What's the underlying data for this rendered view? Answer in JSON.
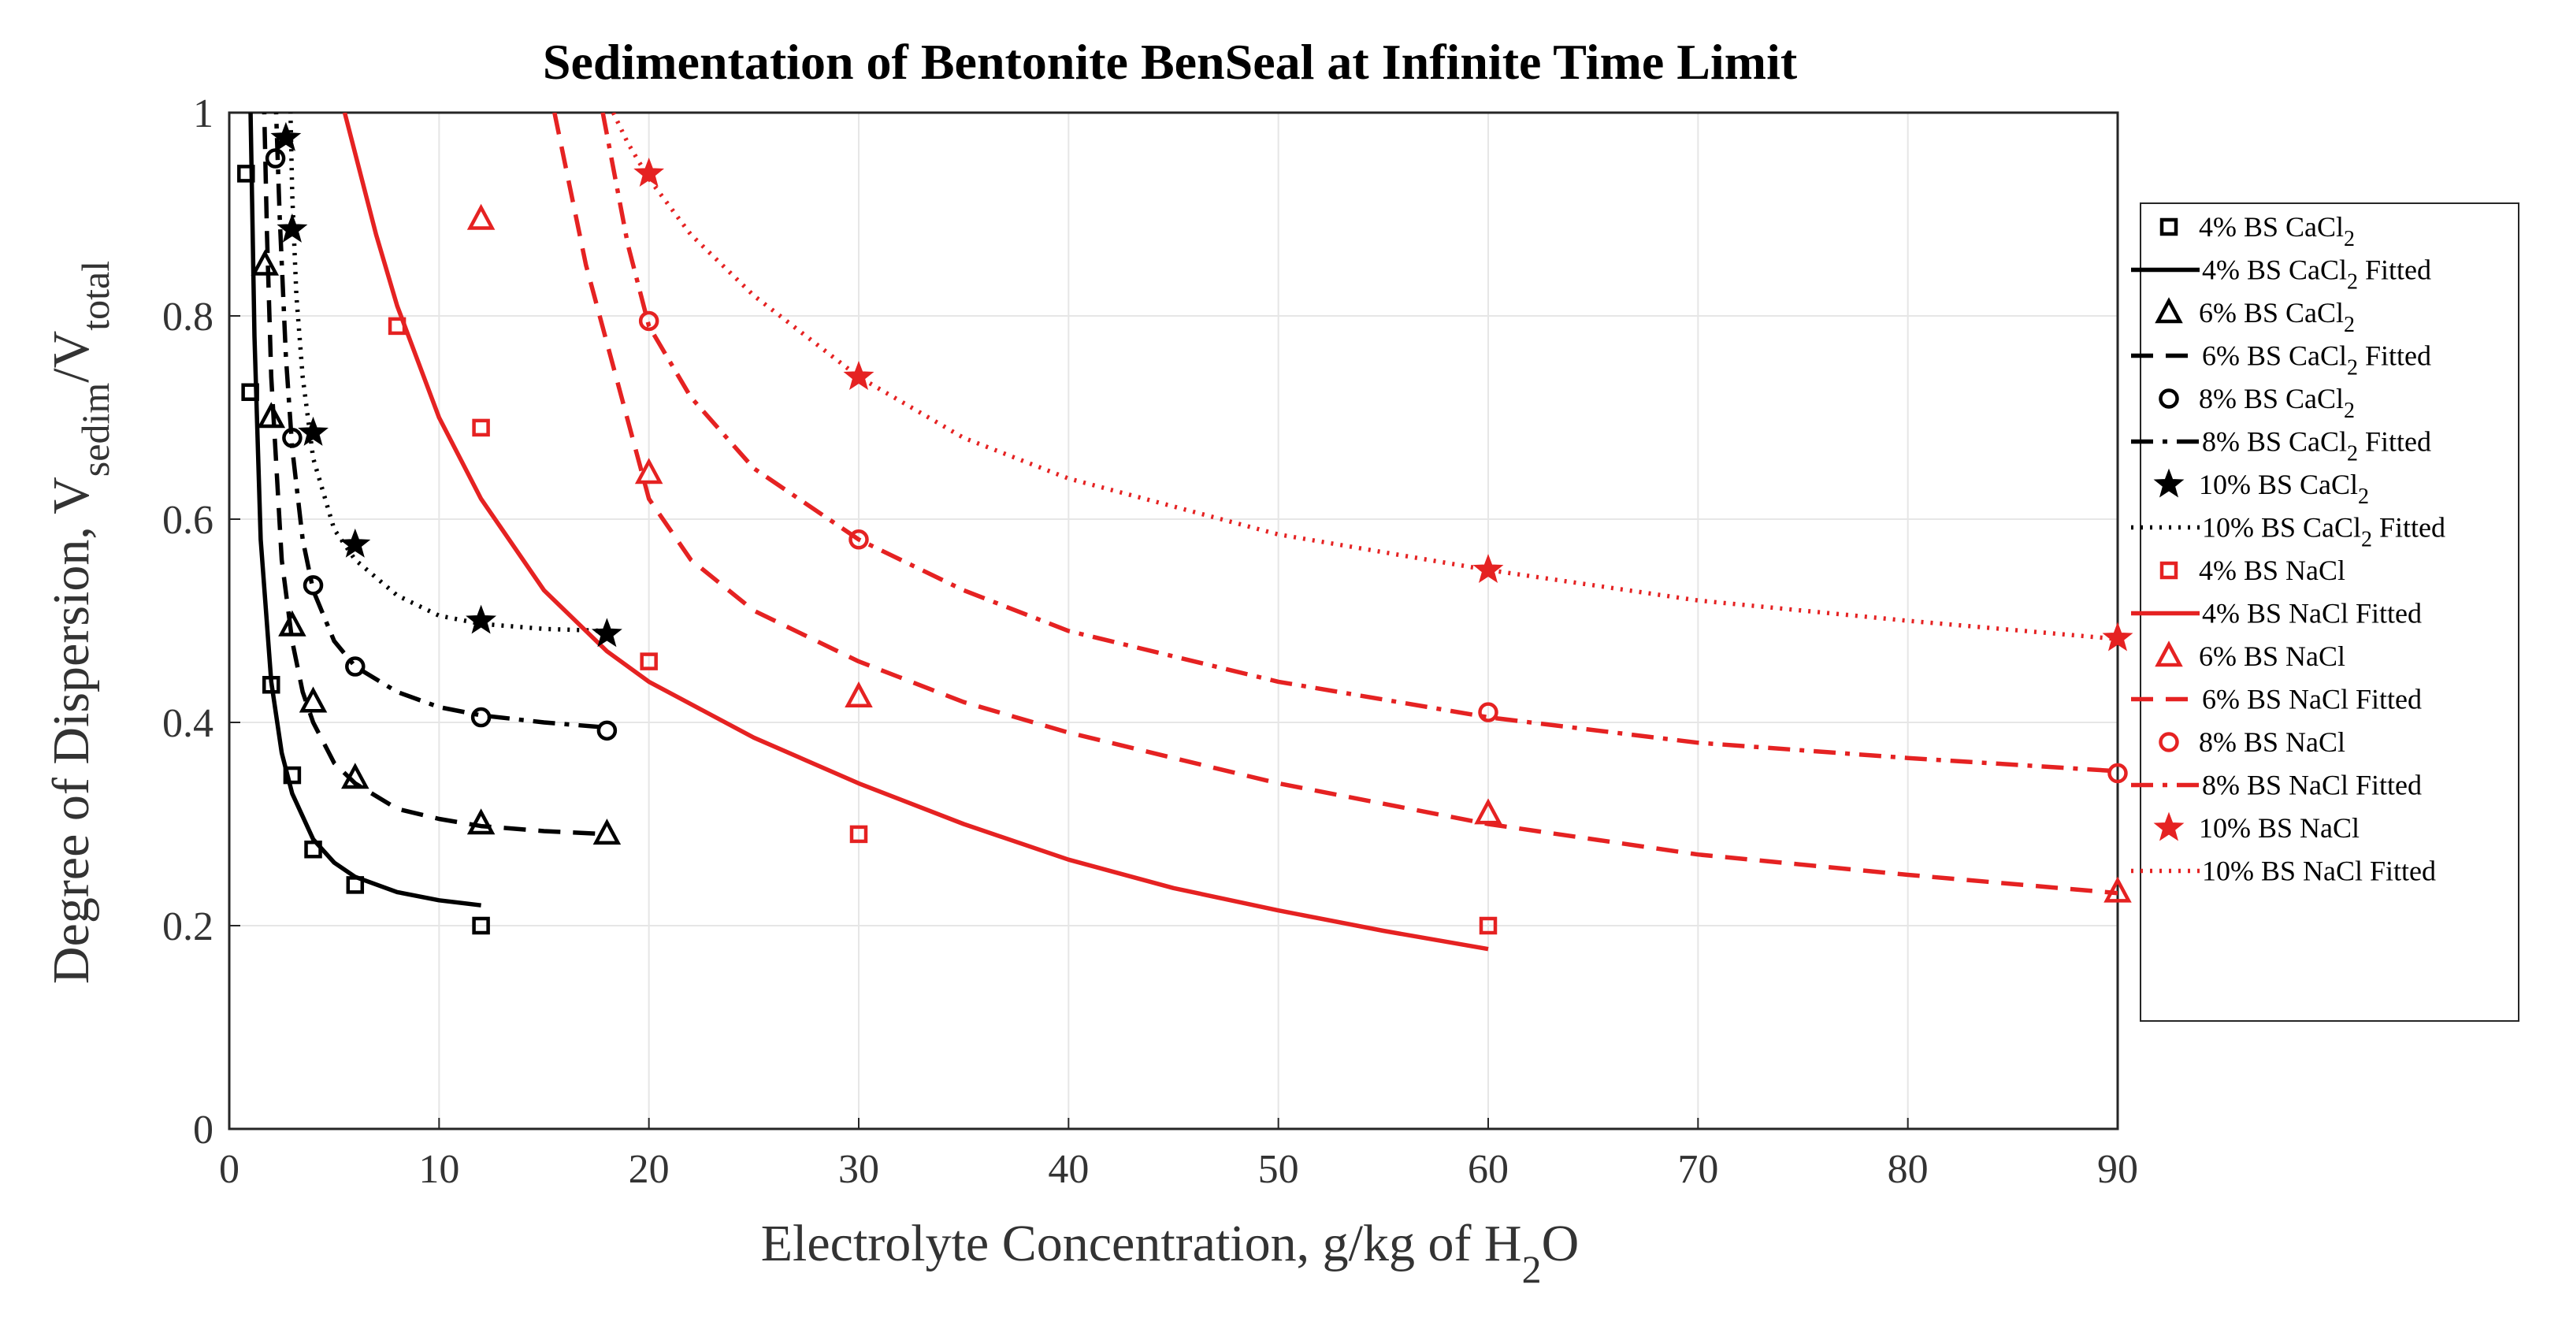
{
  "chart_data": {
    "type": "scatter",
    "title": "Sedimentation of Bentonite BenSeal at Infinite Time Limit",
    "xlabel": {
      "main": "Electrolyte Concentration, g/kg of H",
      "sub": "2",
      "tail": "O"
    },
    "ylabel": {
      "main": "Degree of Dispersion, V",
      "sub1": "sedim",
      "mid": "/V",
      "sub2": "total"
    },
    "xlim": [
      0,
      90
    ],
    "ylim": [
      0,
      1
    ],
    "xticks": [
      0,
      10,
      20,
      30,
      40,
      50,
      60,
      70,
      80,
      90
    ],
    "yticks": [
      0,
      0.2,
      0.4,
      0.6,
      0.8,
      1
    ],
    "ytick_labels": [
      "0",
      "0.2",
      "0.4",
      "0.6",
      "0.8",
      "1"
    ],
    "grid": true,
    "legend_position": "right",
    "colors": {
      "cacl2": "#000000",
      "nacl": "#e52222"
    },
    "series": [
      {
        "name": "4% BS CaCl2",
        "label": "4% BS CaCl",
        "sub": "2",
        "suffix": "",
        "color": "#000000",
        "marker": "square",
        "line": "solid",
        "x": [
          0.8,
          1,
          2,
          3,
          4,
          6,
          12
        ],
        "y": [
          0.94,
          0.725,
          0.437,
          0.348,
          0.275,
          0.24,
          0.2
        ],
        "fit": {
          "x": [
            1.0,
            1.2,
            1.5,
            2,
            2.5,
            3,
            4,
            5,
            6,
            8,
            10,
            12
          ],
          "y": [
            1.02,
            0.78,
            0.58,
            0.44,
            0.37,
            0.33,
            0.285,
            0.262,
            0.248,
            0.233,
            0.225,
            0.22
          ]
        }
      },
      {
        "name": "6% BS CaCl2",
        "label": "6% BS CaCl",
        "sub": "2",
        "suffix": " Fitted",
        "color": "#000000",
        "marker": "triangle",
        "line": "dashed",
        "x": [
          1.7,
          2,
          3,
          4,
          6,
          12,
          18
        ],
        "y": [
          0.85,
          0.7,
          0.495,
          0.42,
          0.345,
          0.3,
          0.29
        ],
        "fit": {
          "x": [
            1.65,
            1.8,
            2,
            2.5,
            3,
            3.5,
            4,
            5,
            6,
            8,
            10,
            12,
            15,
            18
          ],
          "y": [
            1.02,
            0.88,
            0.74,
            0.56,
            0.48,
            0.43,
            0.4,
            0.36,
            0.34,
            0.315,
            0.305,
            0.298,
            0.293,
            0.29
          ]
        }
      },
      {
        "name": "8% BS CaCl2",
        "label": "8% BS CaCl",
        "sub": "2",
        "suffix": " Fitted",
        "color": "#000000",
        "marker": "circle",
        "line": "dashdot",
        "x": [
          2.2,
          3,
          4,
          6,
          12,
          18
        ],
        "y": [
          0.955,
          0.68,
          0.535,
          0.455,
          0.405,
          0.392
        ],
        "fit": {
          "x": [
            2.2,
            2.4,
            2.7,
            3,
            3.5,
            4,
            5,
            6,
            8,
            10,
            12,
            15,
            18
          ],
          "y": [
            1.02,
            0.9,
            0.76,
            0.67,
            0.58,
            0.53,
            0.48,
            0.455,
            0.43,
            0.415,
            0.407,
            0.4,
            0.395
          ]
        }
      },
      {
        "name": "10% BS CaCl2",
        "label": "10% BS CaCl",
        "sub": "2",
        "suffix": " Fitted",
        "color": "#000000",
        "marker": "star",
        "line": "dotted",
        "x": [
          2.7,
          3,
          4,
          6,
          12,
          18
        ],
        "y": [
          0.975,
          0.885,
          0.685,
          0.575,
          0.5,
          0.487
        ],
        "fit": {
          "x": [
            2.9,
            3,
            3.2,
            3.5,
            4,
            5,
            6,
            8,
            10,
            12,
            15,
            18
          ],
          "y": [
            1.02,
            0.92,
            0.82,
            0.74,
            0.66,
            0.59,
            0.56,
            0.525,
            0.505,
            0.497,
            0.492,
            0.49
          ]
        }
      },
      {
        "name": "4% BS NaCl",
        "label": "4% BS NaCl",
        "sub": "",
        "suffix": "",
        "color": "#e52222",
        "marker": "square",
        "line": "solid",
        "x": [
          8,
          12,
          20,
          30,
          60
        ],
        "y": [
          0.79,
          0.69,
          0.46,
          0.29,
          0.2
        ],
        "fit": {
          "x": [
            5.5,
            7,
            8,
            10,
            12,
            15,
            18,
            20,
            25,
            30,
            35,
            40,
            45,
            50,
            55,
            60
          ],
          "y": [
            1.0,
            0.88,
            0.81,
            0.7,
            0.62,
            0.53,
            0.47,
            0.44,
            0.385,
            0.34,
            0.3,
            0.265,
            0.237,
            0.215,
            0.195,
            0.177
          ]
        }
      },
      {
        "name": "6% BS NaCl",
        "label": "6% BS NaCl",
        "sub": "",
        "suffix": "",
        "color": "#e52222",
        "marker": "triangle",
        "line": "dashed",
        "x": [
          12,
          20,
          30,
          60,
          90
        ],
        "y": [
          0.895,
          0.645,
          0.425,
          0.31,
          0.233
        ],
        "fit": {
          "x": [
            15.5,
            17,
            20,
            22,
            25,
            30,
            35,
            40,
            50,
            60,
            70,
            80,
            90
          ],
          "y": [
            1.0,
            0.85,
            0.62,
            0.56,
            0.51,
            0.46,
            0.42,
            0.39,
            0.34,
            0.3,
            0.27,
            0.25,
            0.232
          ]
        }
      },
      {
        "name": "8% BS NaCl",
        "label": "8% BS NaCl",
        "sub": "",
        "suffix": "",
        "color": "#e52222",
        "marker": "circle",
        "line": "dashdot",
        "x": [
          20,
          30,
          60,
          90
        ],
        "y": [
          0.795,
          0.58,
          0.41,
          0.35
        ],
        "fit": {
          "x": [
            17.8,
            19,
            20,
            22,
            25,
            30,
            35,
            40,
            50,
            60,
            70,
            80,
            90
          ],
          "y": [
            1.0,
            0.87,
            0.79,
            0.72,
            0.65,
            0.58,
            0.53,
            0.49,
            0.44,
            0.405,
            0.38,
            0.365,
            0.352
          ]
        }
      },
      {
        "name": "10% BS NaCl",
        "label": "10% BS NaCl",
        "sub": "",
        "suffix": "",
        "color": "#e52222",
        "marker": "star",
        "line": "dotted",
        "x": [
          20,
          30,
          60,
          90
        ],
        "y": [
          0.94,
          0.74,
          0.55,
          0.483
        ],
        "fit": {
          "x": [
            18.3,
            19,
            20,
            22,
            25,
            30,
            35,
            40,
            50,
            60,
            70,
            80,
            90
          ],
          "y": [
            1.0,
            0.97,
            0.935,
            0.88,
            0.82,
            0.74,
            0.68,
            0.64,
            0.585,
            0.55,
            0.52,
            0.5,
            0.482
          ]
        }
      }
    ],
    "legend": [
      {
        "series": 0,
        "kind": "marker",
        "text": "4% BS CaCl",
        "sub": "2",
        "suffix": ""
      },
      {
        "series": 0,
        "kind": "line",
        "text": "4% BS CaCl",
        "sub": "2",
        "suffix": " Fitted"
      },
      {
        "series": 1,
        "kind": "marker",
        "text": "6% BS CaCl",
        "sub": "2",
        "suffix": ""
      },
      {
        "series": 1,
        "kind": "line",
        "text": "6% BS CaCl",
        "sub": "2",
        "suffix": " Fitted"
      },
      {
        "series": 2,
        "kind": "marker",
        "text": "8% BS CaCl",
        "sub": "2",
        "suffix": ""
      },
      {
        "series": 2,
        "kind": "line",
        "text": "8% BS CaCl",
        "sub": "2",
        "suffix": " Fitted"
      },
      {
        "series": 3,
        "kind": "marker",
        "text": "10% BS CaCl",
        "sub": "2",
        "suffix": ""
      },
      {
        "series": 3,
        "kind": "line",
        "text": "10% BS CaCl",
        "sub": "2",
        "suffix": " Fitted"
      },
      {
        "series": 4,
        "kind": "marker",
        "text": "4% BS NaCl",
        "sub": "",
        "suffix": ""
      },
      {
        "series": 4,
        "kind": "line",
        "text": "4% BS NaCl Fitted",
        "sub": "",
        "suffix": ""
      },
      {
        "series": 5,
        "kind": "marker",
        "text": "6% BS NaCl",
        "sub": "",
        "suffix": ""
      },
      {
        "series": 5,
        "kind": "line",
        "text": "6% BS NaCl Fitted",
        "sub": "",
        "suffix": ""
      },
      {
        "series": 6,
        "kind": "marker",
        "text": "8% BS NaCl",
        "sub": "",
        "suffix": ""
      },
      {
        "series": 6,
        "kind": "line",
        "text": "8% BS NaCl Fitted",
        "sub": "",
        "suffix": ""
      },
      {
        "series": 7,
        "kind": "marker",
        "text": "10% BS NaCl",
        "sub": "",
        "suffix": ""
      },
      {
        "series": 7,
        "kind": "line",
        "text": "10% BS NaCl Fitted",
        "sub": "",
        "suffix": ""
      }
    ]
  }
}
